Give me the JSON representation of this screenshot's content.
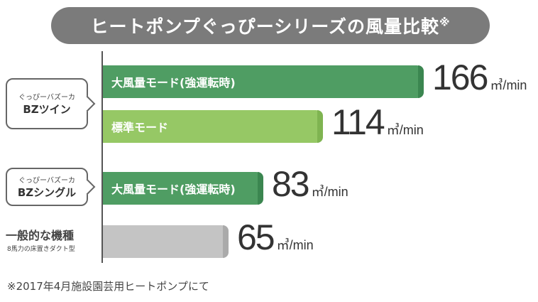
{
  "title": "ヒートポンプぐっぴーシリーズの風量比較",
  "title_mark": "※",
  "footnote": "※2017年4月施設園芸用ヒートポンプにて",
  "groups": [
    {
      "small": "ぐっぴーバズーカ",
      "big": "BZツイン"
    },
    {
      "small": "ぐっぴーバズーカ",
      "big": "BZシングル"
    },
    {
      "title": "一般的な機種",
      "sub": "8馬力の床置きダクト型"
    }
  ],
  "chart_data": {
    "type": "bar",
    "orientation": "horizontal",
    "unit": "㎥/min",
    "xlim": [
      0,
      166
    ],
    "bars": [
      {
        "label": "大風量モード(強運転時)",
        "value": 166,
        "unit": "㎥/min",
        "color": "#4f9d63",
        "cap": "#3b8650"
      },
      {
        "label": "標準モード",
        "value": 114,
        "unit": "㎥/min",
        "color": "#96c865",
        "cap": "#7fb451"
      },
      {
        "label": "大風量モード(強運転時)",
        "value": 83,
        "unit": "㎥/min",
        "color": "#4f9d63",
        "cap": "#3b8650"
      },
      {
        "label": "",
        "value": 65,
        "unit": "㎥/min",
        "color": "#c4c4c4",
        "cap": "#aaaaaa"
      }
    ]
  }
}
